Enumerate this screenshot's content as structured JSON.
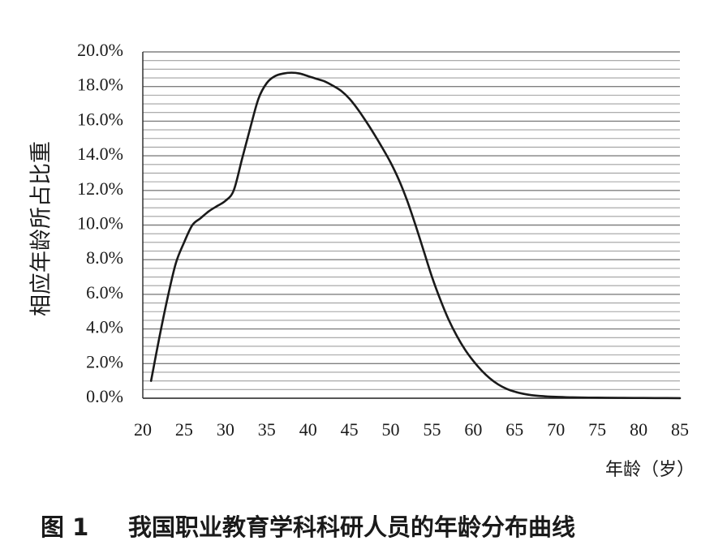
{
  "chart_data": {
    "type": "line",
    "caption_num": "图 1",
    "caption": "我国职业教育学科科研人员的年龄分布曲线",
    "xlabel": "年龄（岁）",
    "ylabel": "相应年龄所占比重",
    "xlim": [
      20,
      85
    ],
    "ylim": [
      0,
      20
    ],
    "xticks": [
      "20",
      "25",
      "30",
      "35",
      "40",
      "45",
      "50",
      "55",
      "60",
      "65",
      "70",
      "75",
      "80",
      "85"
    ],
    "yticks": [
      "0.0%",
      "2.0%",
      "4.0%",
      "6.0%",
      "8.0%",
      "10.0%",
      "12.0%",
      "14.0%",
      "16.0%",
      "18.0%",
      "20.0%"
    ],
    "grid": true,
    "line_color": "#1a1a1a",
    "grid_color": "#a0a0a0",
    "series": [
      {
        "x": [
          21,
          22,
          23,
          24,
          25,
          26,
          27,
          28,
          29,
          30,
          31,
          32,
          33,
          34,
          35,
          36,
          37,
          38,
          39,
          40,
          41,
          42,
          43,
          44,
          45,
          46,
          47,
          48,
          49,
          50,
          51,
          52,
          53,
          54,
          55,
          56,
          57,
          58,
          59,
          60,
          61,
          62,
          63,
          64,
          65,
          66,
          67,
          68,
          69,
          70,
          72,
          75,
          78,
          80,
          82,
          85
        ],
        "y": [
          1.0,
          3.5,
          5.8,
          7.8,
          9.0,
          10.0,
          10.4,
          10.8,
          11.1,
          11.4,
          12.0,
          13.8,
          15.6,
          17.3,
          18.2,
          18.6,
          18.75,
          18.8,
          18.75,
          18.6,
          18.45,
          18.3,
          18.05,
          17.75,
          17.3,
          16.7,
          16.0,
          15.25,
          14.45,
          13.6,
          12.6,
          11.4,
          10.0,
          8.5,
          7.0,
          5.7,
          4.55,
          3.6,
          2.8,
          2.15,
          1.6,
          1.15,
          0.8,
          0.55,
          0.38,
          0.26,
          0.18,
          0.13,
          0.1,
          0.08,
          0.05,
          0.03,
          0.02,
          0.015,
          0.01,
          0.005
        ]
      }
    ]
  }
}
